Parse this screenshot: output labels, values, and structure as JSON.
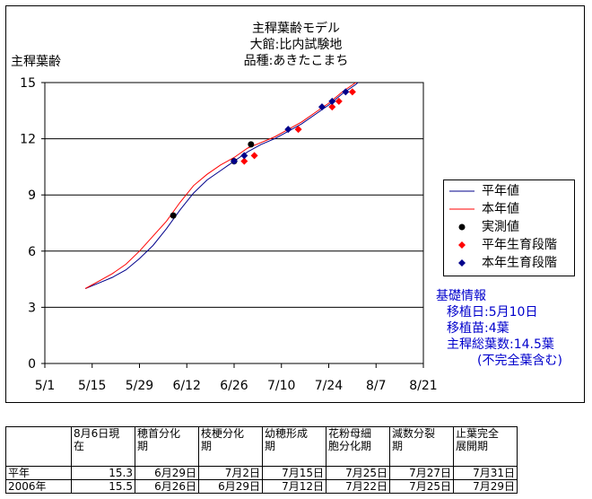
{
  "chart_data": {
    "type": "line",
    "title": [
      "主稈葉齢モデル",
      "大館:比内試験地",
      "品種:あきたこまち"
    ],
    "ylabel": "主稈葉齢",
    "xlabel": "",
    "ylim": [
      0,
      15
    ],
    "yticks": [
      0,
      3,
      6,
      9,
      12,
      15
    ],
    "xticks": [
      "5/1",
      "5/15",
      "5/29",
      "6/12",
      "6/26",
      "7/10",
      "7/24",
      "8/7",
      "8/21"
    ],
    "grid": "horizontal",
    "legend_position": "right",
    "series": [
      {
        "name": "平年値",
        "type": "line",
        "color": "#00008b",
        "x": [
          "5/13",
          "5/17",
          "5/21",
          "5/25",
          "5/29",
          "6/2",
          "6/6",
          "6/10",
          "6/14",
          "6/18",
          "6/22",
          "6/26",
          "6/30",
          "7/4",
          "7/8",
          "7/12",
          "7/16",
          "7/20",
          "7/24",
          "7/28",
          "8/1",
          "8/3"
        ],
        "y": [
          4.0,
          4.3,
          4.6,
          5.0,
          5.6,
          6.3,
          7.2,
          8.2,
          9.1,
          9.8,
          10.3,
          10.8,
          11.3,
          11.7,
          12.0,
          12.4,
          12.8,
          13.3,
          13.8,
          14.4,
          14.9,
          15.2
        ]
      },
      {
        "name": "本年値",
        "type": "line",
        "color": "#ff0000",
        "x": [
          "5/13",
          "5/17",
          "5/21",
          "5/25",
          "5/29",
          "6/2",
          "6/6",
          "6/10",
          "6/14",
          "6/18",
          "6/22",
          "6/26",
          "6/30",
          "7/4",
          "7/8",
          "7/12",
          "7/16",
          "7/20",
          "7/24",
          "7/28",
          "8/1",
          "8/3"
        ],
        "y": [
          4.0,
          4.4,
          4.8,
          5.3,
          6.0,
          6.8,
          7.6,
          8.6,
          9.5,
          10.1,
          10.6,
          11.0,
          11.5,
          11.8,
          12.1,
          12.5,
          12.9,
          13.4,
          13.9,
          14.5,
          15.0,
          15.3
        ]
      },
      {
        "name": "実測値",
        "type": "scatter",
        "color": "#000000",
        "x": [
          "6/8",
          "6/26",
          "7/1"
        ],
        "y": [
          7.9,
          10.8,
          11.7
        ]
      },
      {
        "name": "平年生育段階",
        "type": "scatter",
        "color": "#ff0000",
        "x": [
          "6/29",
          "7/2",
          "7/15",
          "7/25",
          "7/27",
          "7/31"
        ],
        "y": [
          10.8,
          11.1,
          12.5,
          13.7,
          14.0,
          14.5
        ]
      },
      {
        "name": "本年生育段階",
        "type": "scatter",
        "color": "#00008b",
        "x": [
          "6/26",
          "6/29",
          "7/12",
          "7/22",
          "7/25",
          "7/29"
        ],
        "y": [
          10.8,
          11.1,
          12.5,
          13.7,
          14.0,
          14.5
        ]
      }
    ]
  },
  "info": {
    "heading": "基礎情報",
    "lines": [
      "移植日:5月10日",
      "移植苗:4葉",
      "主稈総葉数:14.5葉",
      "(不完全葉含む)"
    ]
  },
  "table": {
    "header": [
      "",
      "8月6日現在",
      "穂首分化期",
      "枝梗分化期",
      "幼穂形成期",
      "花粉母細胞分化期",
      "減数分裂期",
      "止葉完全展開期"
    ],
    "header_display": [
      [
        ""
      ],
      [
        "8月6日現",
        "在"
      ],
      [
        "穂首分化",
        "期"
      ],
      [
        "枝梗分化",
        "期"
      ],
      [
        "幼穂形成",
        "期"
      ],
      [
        "花粉母細",
        "胞分化期"
      ],
      [
        "減数分裂",
        "期"
      ],
      [
        "止葉完全",
        "展開期"
      ]
    ],
    "rows": [
      [
        "平年",
        "15.3",
        "6月29日",
        "7月2日",
        "7月15日",
        "7月25日",
        "7月27日",
        "7月31日"
      ],
      [
        "2006年",
        "15.5",
        "6月26日",
        "6月29日",
        "7月12日",
        "7月22日",
        "7月25日",
        "7月29日"
      ]
    ]
  }
}
